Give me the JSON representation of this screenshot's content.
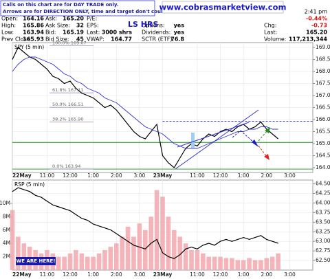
{
  "header": {
    "notice": [
      "Calls on this chart are for DAY TRADE only.",
      "Arrows are for DIRECTION ONLY, time and target don't count."
    ],
    "website": "www.cobrasmarketview.com",
    "tag": "LS HRS",
    "time": "2:41 pm",
    "rows": [
      [
        {
          "label": "Open:",
          "value": "164.16"
        },
        {
          "label": "Ask:",
          "value": "165.20"
        },
        {
          "label": "P/E:"
        },
        null,
        {
          "value": "-0.44%"
        }
      ],
      [
        {
          "label": "High:",
          "value": "165.86"
        },
        {
          "label": "Ask Size:",
          "value": "32"
        },
        {
          "label": "EPS:"
        },
        {
          "label": "Options:",
          "value": "yes"
        },
        {
          "label": "Chg:",
          "value": "-0.73"
        }
      ],
      [
        {
          "label": "Low:",
          "value": "163.94"
        },
        {
          "label": "Bid:",
          "value": "165.19"
        },
        {
          "label": "Last:",
          "value": "3000 shrs"
        },
        {
          "label": "Dividends:",
          "value": "yes"
        },
        {
          "label": "Last:",
          "value": "165.20"
        }
      ],
      [
        {
          "label": "Prev Close:",
          "value": "165.93"
        },
        {
          "label": "Bid Size:",
          "value": "45"
        },
        {
          "label": "VWAP:",
          "value": "164.77"
        },
        {
          "label": "SCTR (ETF):",
          "value": "76.8"
        },
        {
          "label": "Volume:",
          "value": "117,213,344"
        }
      ]
    ]
  },
  "chart_data": [
    {
      "type": "line",
      "title": "SPY (5 min)",
      "x": [
        0,
        3,
        6,
        9,
        12,
        15,
        18,
        21,
        24,
        27,
        30,
        33,
        36,
        39,
        42,
        45,
        48,
        51,
        54,
        57,
        60,
        63,
        66,
        69,
        72,
        75,
        78,
        81,
        84,
        87,
        90,
        93,
        96,
        99,
        102,
        105,
        108,
        111,
        114,
        117,
        120,
        123,
        126,
        129,
        132,
        135,
        138
      ],
      "series": [
        {
          "color": "#000000",
          "values": [
            168.5,
            169.0,
            168.8,
            168.6,
            168.5,
            168.3,
            168.1,
            167.8,
            167.7,
            167.5,
            167.6,
            167.3,
            167.1,
            167.0,
            166.9,
            166.7,
            166.5,
            166.6,
            166.4,
            166.1,
            165.8,
            165.5,
            165.3,
            165.2,
            165.5,
            165.8,
            164.5,
            164.2,
            164.0,
            164.4,
            164.8,
            165.0,
            164.9,
            165.2,
            165.4,
            165.3,
            165.5,
            165.6,
            165.5,
            165.7,
            165.8,
            165.6,
            165.7,
            165.9,
            165.6,
            165.4,
            165.2
          ]
        },
        {
          "color": "#3333cc",
          "values": [
            168.0,
            168.3,
            168.5,
            168.6,
            168.6,
            168.5,
            168.4,
            168.3,
            168.1,
            167.9,
            167.8,
            167.6,
            167.5,
            167.3,
            167.2,
            167.1,
            166.9,
            166.8,
            166.7,
            166.5,
            166.3,
            166.1,
            165.9,
            165.7,
            165.6,
            165.5,
            165.4,
            165.2,
            165.0,
            164.9,
            164.8,
            164.8,
            164.8,
            164.9,
            165.0,
            165.1,
            165.2,
            165.3,
            165.4,
            165.5,
            165.5,
            165.6,
            165.6,
            165.7,
            165.7,
            165.6,
            165.6
          ]
        }
      ],
      "xlim": [
        0,
        156
      ],
      "xticks": [
        {
          "value": 0,
          "label": "22May"
        },
        {
          "value": 18,
          "label": "11:00"
        },
        {
          "value": 30,
          "label": "12:00"
        },
        {
          "value": 42,
          "label": "1:00"
        },
        {
          "value": 54,
          "label": "2:00"
        },
        {
          "value": 66,
          "label": "3:00"
        },
        {
          "value": 78,
          "label": "23May"
        },
        {
          "value": 96,
          "label": "11:00"
        },
        {
          "value": 108,
          "label": "12:00"
        },
        {
          "value": 120,
          "label": "1:00"
        },
        {
          "value": 132,
          "label": "2:00"
        },
        {
          "value": 144,
          "label": "3:00"
        }
      ],
      "ylim": [
        163.8,
        169.2
      ],
      "yticks": [
        {
          "value": 164,
          "label": "164.0"
        },
        164.5,
        {
          "value": 165,
          "label": "165.0"
        },
        165.5,
        {
          "value": 166,
          "label": "166.0"
        },
        166.5,
        {
          "value": 167,
          "label": "167.0"
        },
        167.5,
        {
          "value": 168,
          "label": "168.0"
        },
        168.5,
        {
          "value": 169,
          "label": "169.0"
        }
      ],
      "grid": true,
      "fib_levels": [
        {
          "value": 169.07,
          "label": "100.0%  169.07"
        },
        {
          "value": 167.11,
          "label": "61.8%  167.11"
        },
        {
          "value": 166.51,
          "label": "50.0%  166.51"
        },
        {
          "value": 165.9,
          "label": "38.2%  165.90"
        },
        {
          "value": 163.94,
          "label": "0.0%  163.94"
        }
      ],
      "levels": [
        {
          "value": 165.93,
          "color": "#3333cc",
          "dashed": true
        },
        {
          "value": 165.05,
          "color": "#228b22",
          "dashed": false
        },
        {
          "value": 163.94,
          "color": "#228b22",
          "dashed": false
        }
      ]
    },
    {
      "type": "line",
      "title": "RSP (5 min)",
      "annotation": "WE ARE HERE!",
      "x": [
        0,
        3,
        6,
        9,
        12,
        15,
        18,
        21,
        24,
        27,
        30,
        33,
        36,
        39,
        42,
        45,
        48,
        51,
        54,
        57,
        60,
        63,
        66,
        69,
        72,
        75,
        78,
        81,
        84,
        87,
        90,
        93,
        96,
        99,
        102,
        105,
        108,
        111,
        114,
        117,
        120,
        123,
        126,
        129,
        132,
        135,
        138
      ],
      "series": [
        {
          "color": "#000000",
          "values": [
            64.3,
            64.4,
            64.35,
            64.3,
            64.2,
            64.15,
            64.05,
            63.95,
            63.9,
            63.85,
            63.8,
            63.7,
            63.6,
            63.55,
            63.45,
            63.4,
            63.35,
            63.3,
            63.2,
            63.1,
            63.0,
            62.9,
            62.85,
            62.8,
            62.95,
            63.05,
            62.7,
            62.6,
            62.55,
            62.65,
            62.8,
            62.85,
            62.8,
            62.9,
            62.95,
            62.9,
            63.0,
            63.05,
            63.0,
            63.05,
            63.1,
            63.05,
            63.1,
            63.15,
            63.05,
            63.0,
            62.95
          ]
        },
        {
          "type": "bar",
          "axis": "y2",
          "color": "#f2a7ae",
          "values": [
            9000000,
            5000000,
            4000000,
            3500000,
            3000000,
            2500000,
            3000000,
            2500000,
            2000000,
            2000000,
            2500000,
            3000000,
            2500000,
            2000000,
            2000000,
            2500000,
            3000000,
            3500000,
            4000000,
            5000000,
            6500000,
            5000000,
            7000000,
            6000000,
            8000000,
            12000000,
            11000000,
            8000000,
            6000000,
            5000000,
            4000000,
            3000000,
            3000000,
            2500000,
            2000000,
            2000000,
            2000000,
            1800000,
            1800000,
            1500000,
            1500000,
            1800000,
            1500000,
            1500000,
            1800000,
            2000000,
            2500000
          ]
        }
      ],
      "xlim": [
        0,
        156
      ],
      "xticks": [
        {
          "value": 0,
          "label": "22May"
        },
        {
          "value": 18,
          "label": "11:00"
        },
        {
          "value": 30,
          "label": "12:00"
        },
        {
          "value": 42,
          "label": "1:00"
        },
        {
          "value": 54,
          "label": "2:00"
        },
        {
          "value": 66,
          "label": "3:00"
        },
        {
          "value": 78,
          "label": "23May"
        },
        {
          "value": 96,
          "label": "11:00"
        },
        {
          "value": 108,
          "label": "12:00"
        },
        {
          "value": 120,
          "label": "1:00"
        },
        {
          "value": 132,
          "label": "2:00"
        },
        {
          "value": 144,
          "label": "3:00"
        }
      ],
      "ylim": [
        62.25,
        64.6
      ],
      "yticks": [
        {
          "value": 62.5,
          "label": "62.50"
        },
        62.75,
        {
          "value": 63,
          "label": "63.00"
        },
        63.25,
        {
          "value": 63.5,
          "label": "63.50"
        },
        63.75,
        {
          "value": 64,
          "label": "64.00"
        },
        64.25,
        {
          "value": 64.5,
          "label": "64.50"
        }
      ],
      "y2lim": [
        0,
        13500000
      ],
      "y2ticks": [
        {
          "value": 2000000,
          "label": "2M"
        },
        {
          "value": 4000000,
          "label": "4M"
        },
        {
          "value": 6000000,
          "label": "6M"
        },
        {
          "value": 8000000,
          "label": "8M"
        },
        {
          "value": 10000000,
          "label": "10M"
        }
      ],
      "grid": true
    }
  ]
}
